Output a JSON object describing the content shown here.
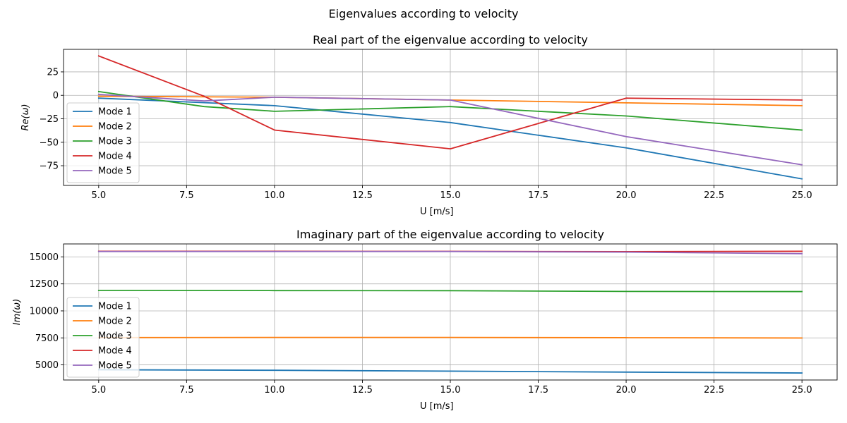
{
  "figure": {
    "title": "Eigenvalues according to velocity"
  },
  "colors": {
    "Mode 1": "#1f77b4",
    "Mode 2": "#ff7f0e",
    "Mode 3": "#2ca02c",
    "Mode 4": "#d62728",
    "Mode 5": "#9467bd"
  },
  "chart_data": [
    {
      "type": "line",
      "title": "Real part of the eigenvalue according to velocity",
      "xlabel": "U [m/s]",
      "ylabel": "Re(ω)",
      "xlim": [
        4,
        26
      ],
      "ylim": [
        -96,
        49
      ],
      "xticks": [
        5,
        7.5,
        10,
        12.5,
        15,
        17.5,
        20,
        22.5,
        25
      ],
      "xtick_labels": [
        "5.0",
        "7.5",
        "10.0",
        "12.5",
        "15.0",
        "17.5",
        "20.0",
        "22.5",
        "25.0"
      ],
      "yticks": [
        -75,
        -50,
        -25,
        0,
        25
      ],
      "ytick_labels": [
        "−75",
        "−50",
        "−25",
        "0",
        "25"
      ],
      "grid": true,
      "legend_position": "lower-left",
      "series": [
        {
          "name": "Mode 1",
          "x": [
            5,
            10,
            15,
            20,
            25
          ],
          "y": [
            -3,
            -11,
            -29,
            -56,
            -89
          ]
        },
        {
          "name": "Mode 2",
          "x": [
            5,
            10,
            15,
            20,
            25
          ],
          "y": [
            -1,
            -2,
            -5,
            -8,
            -11
          ]
        },
        {
          "name": "Mode 3",
          "x": [
            5,
            8,
            10,
            15,
            20,
            25
          ],
          "y": [
            4,
            -12,
            -17,
            -12,
            -22,
            -37
          ]
        },
        {
          "name": "Mode 4",
          "x": [
            5,
            8,
            10,
            15,
            20,
            25
          ],
          "y": [
            42,
            -1,
            -37,
            -57,
            -3,
            -5
          ]
        },
        {
          "name": "Mode 5",
          "x": [
            5,
            8,
            10,
            15,
            20,
            25
          ],
          "y": [
            1,
            -6,
            -2,
            -5,
            -44,
            -74
          ]
        }
      ]
    },
    {
      "type": "line",
      "title": "Imaginary part of the eigenvalue according to velocity",
      "xlabel": "U [m/s]",
      "ylabel": "Im(ω)",
      "xlim": [
        4,
        26
      ],
      "ylim": [
        3600,
        16200
      ],
      "xticks": [
        5,
        7.5,
        10,
        12.5,
        15,
        17.5,
        20,
        22.5,
        25
      ],
      "xtick_labels": [
        "5.0",
        "7.5",
        "10.0",
        "12.5",
        "15.0",
        "17.5",
        "20.0",
        "22.5",
        "25.0"
      ],
      "yticks": [
        5000,
        7500,
        10000,
        12500,
        15000
      ],
      "ytick_labels": [
        "5000",
        "7500",
        "10000",
        "12500",
        "15000"
      ],
      "grid": true,
      "legend_position": "lower-left",
      "series": [
        {
          "name": "Mode 1",
          "x": [
            5,
            10,
            15,
            20,
            25
          ],
          "y": [
            4550,
            4500,
            4420,
            4330,
            4250
          ]
        },
        {
          "name": "Mode 2",
          "x": [
            5,
            10,
            15,
            20,
            25
          ],
          "y": [
            7530,
            7540,
            7540,
            7520,
            7490
          ]
        },
        {
          "name": "Mode 3",
          "x": [
            5,
            10,
            15,
            20,
            25
          ],
          "y": [
            11900,
            11880,
            11870,
            11800,
            11790
          ]
        },
        {
          "name": "Mode 4",
          "x": [
            5,
            10,
            15,
            20,
            25
          ],
          "y": [
            15520,
            15520,
            15510,
            15490,
            15520
          ]
        },
        {
          "name": "Mode 5",
          "x": [
            5,
            10,
            15,
            20,
            25
          ],
          "y": [
            15500,
            15500,
            15500,
            15440,
            15300
          ]
        }
      ]
    }
  ]
}
